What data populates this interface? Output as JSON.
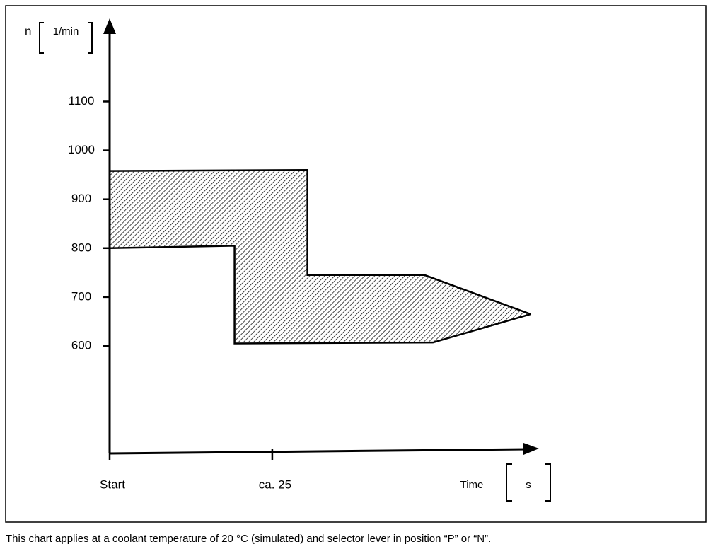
{
  "chart_data": {
    "type": "area",
    "y_label": "n",
    "y_unit": "1/min",
    "x_label": "Time",
    "x_unit": "s",
    "caption": "This chart applies at a coolant temperature of 20 °C (simulated) and selector lever in position “P” or “N”.",
    "series": [
      {
        "color": "#000000",
        "x": [
          0,
          30.4,
          30.4,
          48.4,
          64.7
        ],
        "values": [
          958,
          960,
          745,
          745,
          665
        ]
      },
      {
        "color": "#000000",
        "x": [
          0,
          19.2,
          19.2,
          49.7,
          64.7
        ],
        "values": [
          800,
          805,
          605,
          607,
          665
        ]
      }
    ],
    "xlim": [
      0,
      66
    ],
    "xticks": [
      {
        "value": 0,
        "label": "Start"
      },
      {
        "value": 25,
        "label": "ca. 25"
      }
    ],
    "ylim": [
      380,
      1270
    ],
    "yticks": [
      600,
      700,
      800,
      900,
      1000,
      1100
    ],
    "hatch": true
  }
}
